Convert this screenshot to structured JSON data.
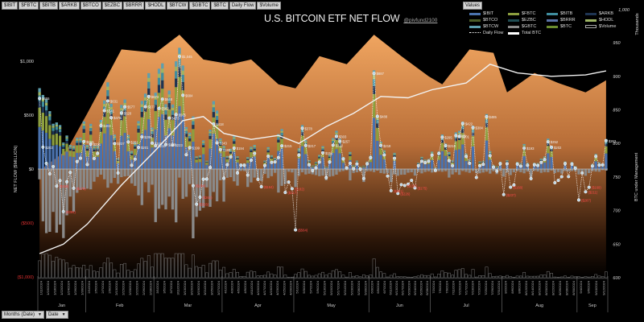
{
  "filter_buttons": [
    "$IBIT",
    "$FBTC",
    "$BITB",
    "$ARKB",
    "$BTCO",
    "$EZBC",
    "$BRRR",
    "$HODL",
    "$BTCW",
    "$GBTC",
    "$BTC",
    "Daily Flow",
    "$Volume"
  ],
  "title": "U.S. BITCOIN ETF NET FLOW",
  "handle": "@pivfund2100",
  "legend": {
    "button": "Values",
    "items": [
      {
        "label": "$IBIT",
        "color": "#4a72ad"
      },
      {
        "label": "$FBTC",
        "color": "#8c9e3e"
      },
      {
        "label": "$BITB",
        "color": "#3f8d9e"
      },
      {
        "label": "$ARKB",
        "color": "#1e3452"
      },
      {
        "label": "$BTCO",
        "color": "#4b5c28"
      },
      {
        "label": "$EZBC",
        "color": "#1f4c52"
      },
      {
        "label": "$BRRR",
        "color": "#5a72a6"
      },
      {
        "label": "$HODL",
        "color": "#9db464"
      },
      {
        "label": "$BTCW",
        "color": "#5d9fae"
      },
      {
        "label": "$GBTC",
        "color": "#8a8a8a"
      },
      {
        "label": "$BTC",
        "color": "#6b8c2e"
      },
      {
        "label": "$Volume",
        "color": "#000000"
      },
      {
        "label": "Daily Flow",
        "color": "#ffffff"
      },
      {
        "label": "Total BTC",
        "color": "#ffffff"
      }
    ]
  },
  "controls": {
    "months": "Months (Date)",
    "date": "Date"
  },
  "chart_data": {
    "type": "bar",
    "title": "U.S. BITCOIN ETF NET FLOW",
    "ylabel": "NET FLOW ($MILLION)",
    "y2label": "BTC under Management",
    "y2unit": "Thousands",
    "y2_top_label": "1,000",
    "ylim": [
      -1000,
      1000
    ],
    "y2lim": [
      600,
      950
    ],
    "yticks": [
      "$1,000",
      "$500",
      "$0",
      "($500)",
      "($1,000)"
    ],
    "yticks_values": [
      1000,
      500,
      0,
      -500,
      -1000
    ],
    "y2ticks": [
      950,
      900,
      850,
      800,
      750,
      700,
      650,
      600
    ],
    "months": [
      {
        "label": "Jan",
        "start": 0,
        "end": 14,
        "ticks": [
          "1/11/2024",
          "1/16/2024",
          "1/18/2024",
          "1/22/2024",
          "1/24/2024",
          "1/26/2024",
          "1/30/2024"
        ]
      },
      {
        "label": "Feb",
        "start": 14,
        "end": 34,
        "ticks": [
          "2/1/2024",
          "2/5/2024",
          "2/7/2024",
          "2/9/2024",
          "2/13/2024",
          "2/15/2024",
          "2/20/2024",
          "2/22/2024",
          "2/26/2024",
          "2/28/2024"
        ]
      },
      {
        "label": "Mar",
        "start": 34,
        "end": 54,
        "ticks": [
          "3/1/2024",
          "3/5/2024",
          "3/7/2024",
          "3/11/2024",
          "3/13/2024",
          "3/15/2024",
          "3/19/2024",
          "3/21/2024",
          "3/25/2024",
          "3/27/2024"
        ]
      },
      {
        "label": "Apr",
        "start": 54,
        "end": 75,
        "ticks": [
          "4/1/2024",
          "4/3/2024",
          "4/5/2024",
          "4/9/2024",
          "4/11/2024",
          "4/15/2024",
          "4/17/2024",
          "4/19/2024",
          "4/23/2024",
          "4/25/2024",
          "4/29/2024"
        ]
      },
      {
        "label": "May",
        "start": 75,
        "end": 97,
        "ticks": [
          "5/1/2024",
          "5/3/2024",
          "5/7/2024",
          "5/9/2024",
          "5/13/2024",
          "5/15/2024",
          "5/17/2024",
          "5/21/2024",
          "5/23/2024",
          "5/28/2024",
          "5/30/2024"
        ]
      },
      {
        "label": "Jun",
        "start": 97,
        "end": 115,
        "ticks": [
          "6/3/2024",
          "6/5/2024",
          "6/7/2024",
          "6/11/2024",
          "6/13/2024",
          "6/17/2024",
          "6/20/2024",
          "6/24/2024",
          "6/26/2024",
          "6/28/2024"
        ]
      },
      {
        "label": "Jul",
        "start": 115,
        "end": 136,
        "ticks": [
          "7/2/2024",
          "7/5/2024",
          "7/9/2024",
          "7/11/2024",
          "7/15/2024",
          "7/17/2024",
          "7/19/2024",
          "7/23/2024",
          "7/25/2024",
          "7/29/2024",
          "7/31/2024"
        ]
      },
      {
        "label": "Aug",
        "start": 136,
        "end": 158,
        "ticks": [
          "8/2/2024",
          "8/6/2024",
          "8/8/2024",
          "8/12/2024",
          "8/14/2024",
          "8/16/2024",
          "8/20/2024",
          "8/22/2024",
          "8/26/2024",
          "8/28/2024",
          "8/30/2024"
        ]
      },
      {
        "label": "Sep",
        "start": 158,
        "end": 167,
        "ticks": [
          "9/4/2024",
          "9/6/2024",
          "9/10/2024",
          "9/12/2024"
        ]
      }
    ],
    "daily_flow": [
      655,
      203,
      53,
      -45,
      23,
      -158,
      -107,
      -394,
      -118,
      -31,
      -178,
      70,
      100,
      255,
      42,
      231,
      98,
      145,
      403,
      541,
      631,
      476,
      237,
      -36,
      520,
      577,
      251,
      35,
      92,
      201,
      298,
      577,
      673,
      240,
      216,
      562,
      648,
      227,
      473,
      223,
      505,
      1045,
      684,
      133,
      199,
      -154,
      -326,
      -261,
      -94,
      -93,
      15,
      418,
      243,
      180,
      -86,
      40,
      113,
      194,
      -36,
      35,
      35,
      -56,
      82,
      145,
      -96,
      -164,
      33,
      119,
      62,
      67,
      106,
      215,
      -217,
      -120,
      -182,
      -564,
      129,
      378,
      217,
      39,
      -15,
      11,
      65,
      151,
      -80,
      66,
      222,
      303,
      257,
      94,
      10,
      53,
      2,
      48,
      0,
      -88,
      49,
      105,
      887,
      488,
      218,
      131,
      -65,
      -201,
      100,
      -226,
      -145,
      -152,
      -140,
      -105,
      -175,
      31,
      73,
      60,
      72,
      129,
      -13,
      143,
      295,
      216,
      78,
      31,
      310,
      301,
      422,
      117,
      53,
      384,
      -78,
      31,
      44,
      485,
      124,
      18,
      -19,
      50,
      -237,
      50,
      -168,
      -148,
      46,
      27,
      193,
      35,
      -89,
      40,
      33,
      62,
      88,
      252,
      202,
      -127,
      -105,
      -71,
      51,
      -70,
      47,
      8,
      -287,
      -37,
      -211,
      -169,
      28,
      117,
      37,
      39,
      263
    ],
    "gbtc_outflow": [
      -95,
      -484,
      -594,
      -582,
      -397,
      -590,
      -515,
      -640,
      -429,
      -255,
      -394,
      -220,
      -192,
      -187,
      -182,
      -188,
      -117,
      -73,
      -52,
      -95,
      -173,
      -130,
      -82,
      -137,
      -75,
      -68,
      -65,
      -133,
      -156,
      -244,
      -334,
      -122,
      -216,
      -145,
      -492,
      -368,
      -332,
      -374,
      -255,
      -375,
      -494,
      -79,
      -276,
      -257,
      -139,
      -642,
      -443,
      -386,
      -359,
      -170,
      -350,
      -212,
      -299,
      -104,
      -302,
      -81,
      -75,
      -114,
      -154,
      -17,
      -18,
      -166,
      -124,
      -79,
      -90,
      -110,
      -45,
      -84,
      -66,
      -35,
      -218,
      -156,
      -140,
      -25,
      -31,
      -167,
      -63,
      -30,
      -50,
      -43,
      -49,
      -56,
      -66,
      -61,
      -104,
      -70,
      -65,
      -52,
      -25,
      -18,
      -12,
      -105,
      -36,
      -30,
      -24,
      -120,
      -20,
      -20,
      -28,
      -15,
      -37,
      -42,
      -39,
      -121,
      -50,
      -62,
      -53,
      -52,
      -34,
      -30,
      -61,
      -28,
      -40,
      -27,
      -21,
      -32,
      -28,
      -20,
      -25,
      -20,
      -79,
      -50,
      -30,
      -53,
      -18,
      -26,
      -35,
      -18,
      -37,
      -39,
      -32,
      -24,
      -42,
      -20,
      -47,
      -18,
      -70,
      -33,
      -56,
      -30,
      -20,
      -29,
      -39,
      -23,
      -74,
      -18,
      -23,
      -35,
      -28,
      -30,
      -14,
      -38,
      -28,
      -42,
      -19,
      -22,
      -18,
      -20,
      -50,
      -24,
      -62,
      -37,
      -20,
      -23,
      -25,
      -10,
      -15
    ],
    "inflow_shares": {
      "$IBIT": 0.52,
      "$FBTC": 0.24,
      "$ARKB": 0.08,
      "$BITB": 0.07,
      "$HODL": 0.04,
      "$BTCW": 0.05
    },
    "total_btc_thousands": [
      [
        0,
        636
      ],
      [
        7,
        650
      ],
      [
        14,
        680
      ],
      [
        24,
        738
      ],
      [
        34,
        790
      ],
      [
        42,
        834
      ],
      [
        48,
        840
      ],
      [
        54,
        815
      ],
      [
        62,
        806
      ],
      [
        70,
        812
      ],
      [
        76,
        800
      ],
      [
        84,
        825
      ],
      [
        92,
        845
      ],
      [
        100,
        870
      ],
      [
        108,
        868
      ],
      [
        115,
        880
      ],
      [
        125,
        890
      ],
      [
        132,
        918
      ],
      [
        140,
        905
      ],
      [
        150,
        900
      ],
      [
        160,
        902
      ],
      [
        166,
        908
      ]
    ],
    "aum_area_thousands": [
      [
        0,
        760
      ],
      [
        8,
        790
      ],
      [
        14,
        845
      ],
      [
        24,
        940
      ],
      [
        34,
        935
      ],
      [
        41,
        962
      ],
      [
        48,
        925
      ],
      [
        56,
        918
      ],
      [
        62,
        925
      ],
      [
        70,
        888
      ],
      [
        75,
        882
      ],
      [
        82,
        930
      ],
      [
        90,
        918
      ],
      [
        98,
        962
      ],
      [
        106,
        930
      ],
      [
        114,
        900
      ],
      [
        118,
        888
      ],
      [
        126,
        940
      ],
      [
        133,
        935
      ],
      [
        137,
        876
      ],
      [
        145,
        905
      ],
      [
        152,
        890
      ],
      [
        160,
        876
      ],
      [
        166,
        894
      ]
    ]
  }
}
